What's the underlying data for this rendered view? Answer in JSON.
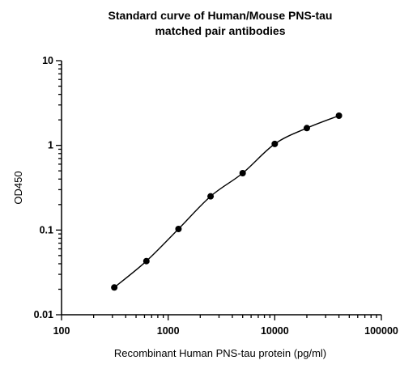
{
  "chart_data": {
    "type": "scatter",
    "title": [
      "Standard curve of Human/Mouse PNS-tau",
      "matched pair antibodies"
    ],
    "x_label": "Recombinant Human PNS-tau protein (pg/ml)",
    "y_label": "OD450",
    "x": [
      312.5,
      625,
      1250,
      2500,
      5000,
      10000,
      20000,
      40000
    ],
    "values": [
      0.021,
      0.043,
      0.103,
      0.25,
      0.47,
      1.04,
      1.6,
      2.24
    ],
    "color": "#000000",
    "x_log": true,
    "y_log": true,
    "xlim": [
      100,
      100000
    ],
    "xticks": [
      100,
      1000,
      10000,
      100000
    ],
    "ylim": [
      0.01,
      10
    ],
    "yticks": [
      0.01,
      0.1,
      1,
      10
    ]
  }
}
